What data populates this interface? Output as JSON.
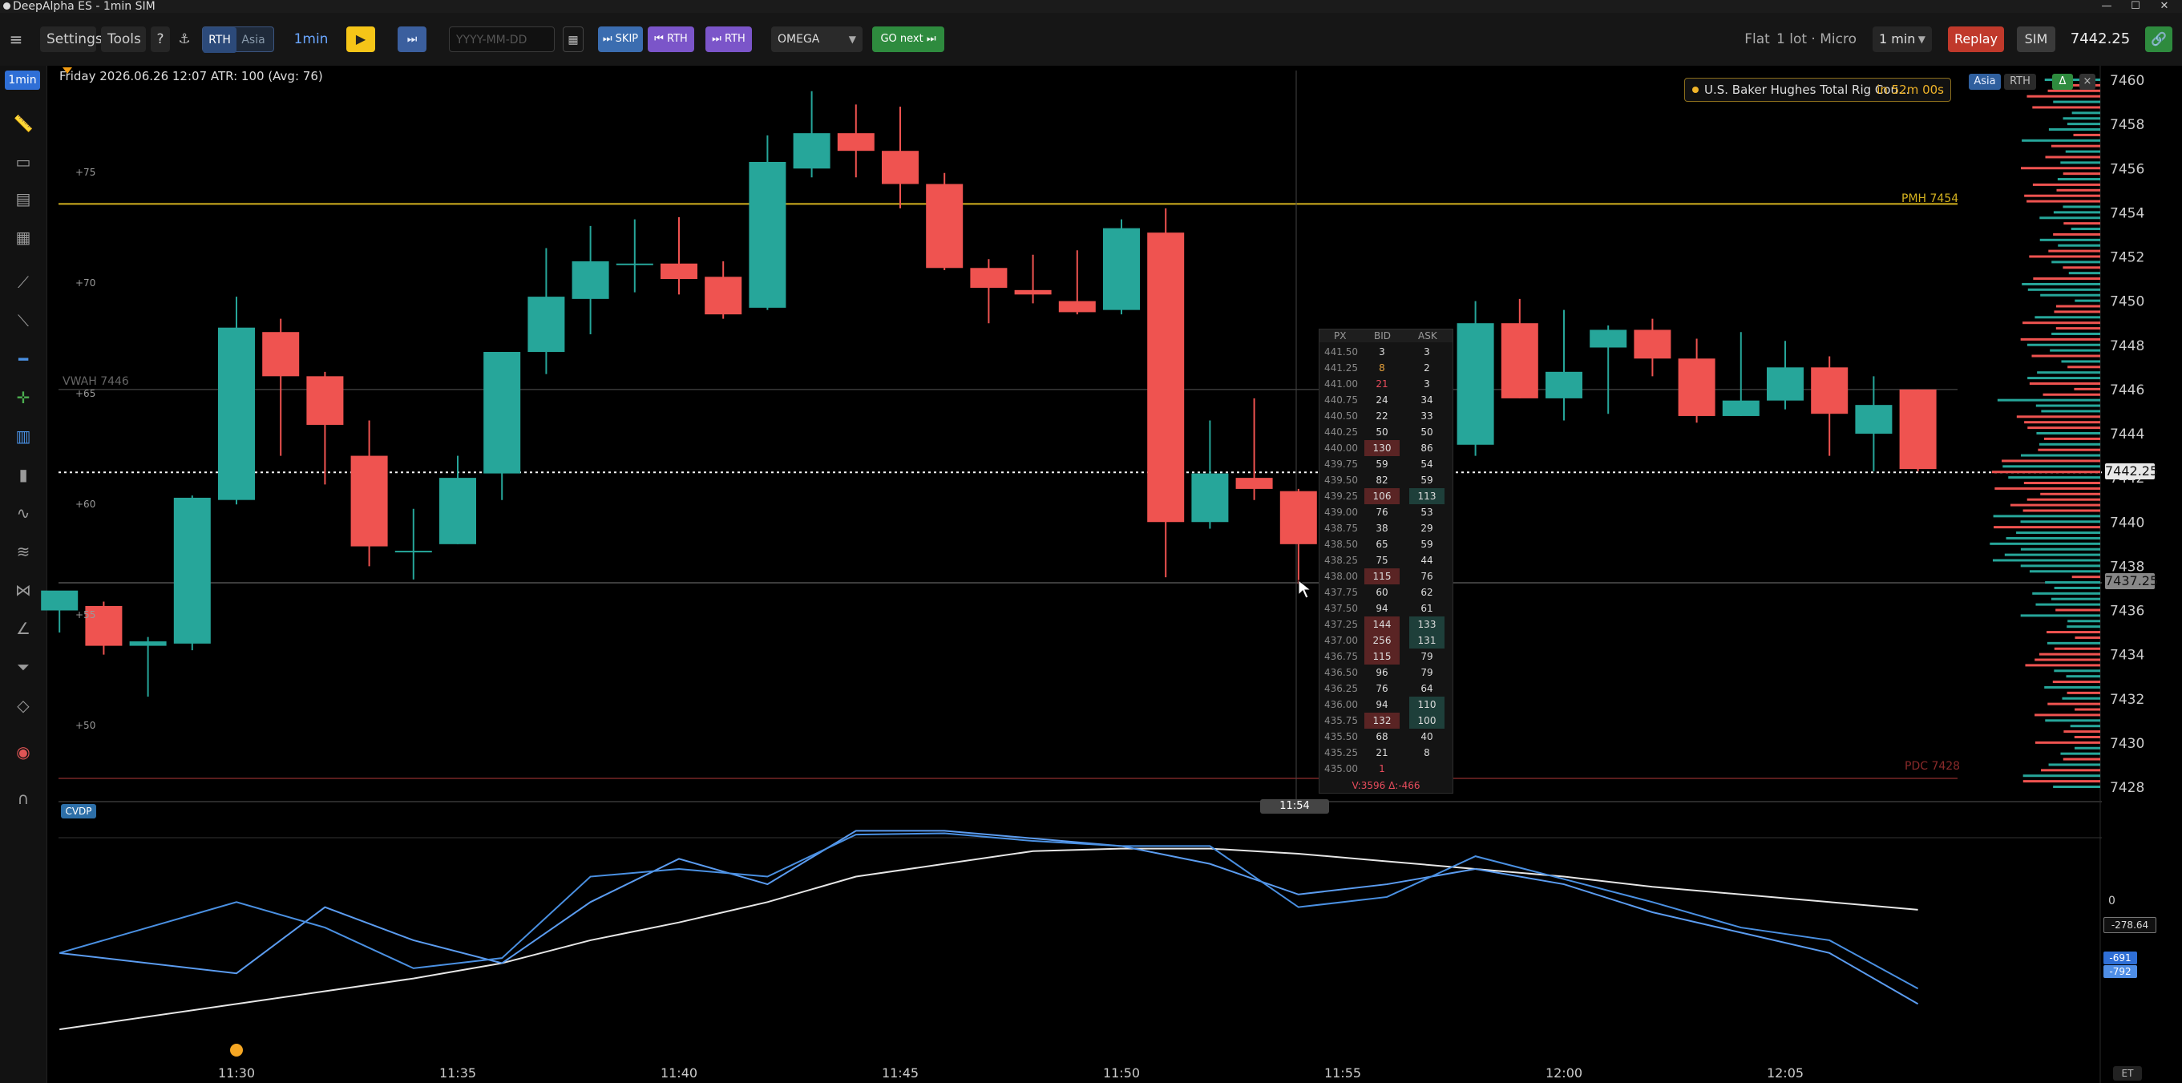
{
  "window": {
    "title": "DeepAlpha ES - 1min SIM"
  },
  "toolbar": {
    "settings": "Settings",
    "tools": "Tools",
    "help": "?",
    "session_rth": "RTH",
    "session_asia": "Asia",
    "timeframe": "1min",
    "date_placeholder": "YYYY-MM-DD",
    "skip": "⏭ SKIP",
    "prev_rth": "⏮ RTH",
    "next_rth": "⏭ RTH",
    "model": "OMEGA",
    "go_next": "GO next ⏭",
    "position": "Flat",
    "lot": "1 lot · Micro",
    "interval_select": "1 min",
    "replay": "Replay",
    "sim": "SIM",
    "last_price": "7442.25"
  },
  "left_toolbar": {
    "timeframe_badge": "1min"
  },
  "chart_header": {
    "info": "Friday 2026.06.26 12:07   ATR: 100 (Avg: 76)"
  },
  "event_banner": {
    "name": "U.S. Baker Hughes Total Rig Cou...",
    "countdown": "in 52m 00s"
  },
  "profile_tabs": {
    "asia": "Asia",
    "rth": "RTH",
    "delta": "Δ",
    "close": "×"
  },
  "level_labels": {
    "pmh": "PMH 7454",
    "vwah": "VWAH 7446",
    "pdc": "PDC 7428"
  },
  "crosshair": {
    "time_label": "11:54",
    "price_label": "7437.25"
  },
  "cvd": {
    "title": "CVDP",
    "zero_label": "0",
    "value1": "-278.64",
    "value2": "-691",
    "value3": "-792"
  },
  "timezone": "ET",
  "offset_labels": [
    "+75",
    "+70",
    "+65",
    "+60",
    "+55",
    "+50"
  ],
  "ladder": {
    "headers": [
      "PX",
      "BID",
      "ASK"
    ],
    "rows": [
      {
        "px": "441.50",
        "bid": "3",
        "ask": "3"
      },
      {
        "px": "441.25",
        "bid": "8",
        "ask": "2"
      },
      {
        "px": "441.00",
        "bid": "21",
        "ask": "3"
      },
      {
        "px": "440.75",
        "bid": "24",
        "ask": "34"
      },
      {
        "px": "440.50",
        "bid": "22",
        "ask": "33"
      },
      {
        "px": "440.25",
        "bid": "50",
        "ask": "50"
      },
      {
        "px": "440.00",
        "bid": "130",
        "ask": "86"
      },
      {
        "px": "439.75",
        "bid": "59",
        "ask": "54"
      },
      {
        "px": "439.50",
        "bid": "82",
        "ask": "59"
      },
      {
        "px": "439.25",
        "bid": "106",
        "ask": "113"
      },
      {
        "px": "439.00",
        "bid": "76",
        "ask": "53"
      },
      {
        "px": "438.75",
        "bid": "38",
        "ask": "29"
      },
      {
        "px": "438.50",
        "bid": "65",
        "ask": "59"
      },
      {
        "px": "438.25",
        "bid": "75",
        "ask": "44"
      },
      {
        "px": "438.00",
        "bid": "115",
        "ask": "76"
      },
      {
        "px": "437.75",
        "bid": "60",
        "ask": "62"
      },
      {
        "px": "437.50",
        "bid": "94",
        "ask": "61"
      },
      {
        "px": "437.25",
        "bid": "144",
        "ask": "133"
      },
      {
        "px": "437.00",
        "bid": "256",
        "ask": "131"
      },
      {
        "px": "436.75",
        "bid": "115",
        "ask": "79"
      },
      {
        "px": "436.50",
        "bid": "96",
        "ask": "79"
      },
      {
        "px": "436.25",
        "bid": "76",
        "ask": "64"
      },
      {
        "px": "436.00",
        "bid": "94",
        "ask": "110"
      },
      {
        "px": "435.75",
        "bid": "132",
        "ask": "100"
      },
      {
        "px": "435.50",
        "bid": "68",
        "ask": "40"
      },
      {
        "px": "435.25",
        "bid": "21",
        "ask": "8"
      },
      {
        "px": "435.00",
        "bid": "1",
        "ask": ""
      }
    ],
    "summary": "V:3596  Δ:-466"
  },
  "chart_data": {
    "type": "candlestick",
    "y_ticks": [
      "7460",
      "7458",
      "7456",
      "7454",
      "7452",
      "7450",
      "7448",
      "7446",
      "7444",
      "7442",
      "7440",
      "7438",
      "7436",
      "7434",
      "7432",
      "7430",
      "7428"
    ],
    "x_ticks": [
      "11:30",
      "11:35",
      "11:40",
      "11:45",
      "11:50",
      "11:55",
      "12:00",
      "12:05"
    ],
    "candles": [
      {
        "t": "11:26",
        "o": 7436.0,
        "h": 7436.8,
        "l": 7435.0,
        "c": 7436.9
      },
      {
        "t": "11:27",
        "o": 7436.2,
        "h": 7436.4,
        "l": 7434.0,
        "c": 7434.4
      },
      {
        "t": "11:28",
        "o": 7434.4,
        "h": 7434.8,
        "l": 7432.1,
        "c": 7434.6
      },
      {
        "t": "11:29",
        "o": 7434.5,
        "h": 7441.2,
        "l": 7434.2,
        "c": 7441.1
      },
      {
        "t": "11:30",
        "o": 7441.0,
        "h": 7450.2,
        "l": 7440.8,
        "c": 7448.8
      },
      {
        "t": "11:31",
        "o": 7448.6,
        "h": 7449.2,
        "l": 7443.0,
        "c": 7446.6
      },
      {
        "t": "11:32",
        "o": 7446.6,
        "h": 7446.8,
        "l": 7441.7,
        "c": 7444.4
      },
      {
        "t": "11:33",
        "o": 7443.0,
        "h": 7444.6,
        "l": 7438.0,
        "c": 7438.9
      },
      {
        "t": "11:34",
        "o": 7438.7,
        "h": 7440.6,
        "l": 7437.4,
        "c": 7438.7
      },
      {
        "t": "11:35",
        "o": 7439.0,
        "h": 7443.0,
        "l": 7439.0,
        "c": 7442.0
      },
      {
        "t": "11:36",
        "o": 7442.2,
        "h": 7447.7,
        "l": 7441.0,
        "c": 7447.7
      },
      {
        "t": "11:37",
        "o": 7447.7,
        "h": 7452.4,
        "l": 7446.7,
        "c": 7450.2
      },
      {
        "t": "11:38",
        "o": 7450.1,
        "h": 7453.4,
        "l": 7448.5,
        "c": 7451.8
      },
      {
        "t": "11:39",
        "o": 7451.7,
        "h": 7453.7,
        "l": 7450.4,
        "c": 7451.7
      },
      {
        "t": "11:40",
        "o": 7451.7,
        "h": 7453.8,
        "l": 7450.3,
        "c": 7451.0
      },
      {
        "t": "11:41",
        "o": 7451.1,
        "h": 7451.8,
        "l": 7449.2,
        "c": 7449.4
      },
      {
        "t": "11:42",
        "o": 7449.7,
        "h": 7457.5,
        "l": 7449.6,
        "c": 7456.3
      },
      {
        "t": "11:43",
        "o": 7456.0,
        "h": 7459.5,
        "l": 7455.6,
        "c": 7457.6
      },
      {
        "t": "11:44",
        "o": 7457.6,
        "h": 7458.9,
        "l": 7455.6,
        "c": 7456.8
      },
      {
        "t": "11:45",
        "o": 7456.8,
        "h": 7458.8,
        "l": 7454.2,
        "c": 7455.3
      },
      {
        "t": "11:46",
        "o": 7455.3,
        "h": 7455.8,
        "l": 7451.4,
        "c": 7451.5
      },
      {
        "t": "11:47",
        "o": 7451.5,
        "h": 7451.9,
        "l": 7449.0,
        "c": 7450.6
      },
      {
        "t": "11:48",
        "o": 7450.5,
        "h": 7452.1,
        "l": 7449.9,
        "c": 7450.3
      },
      {
        "t": "11:49",
        "o": 7450.0,
        "h": 7452.3,
        "l": 7449.4,
        "c": 7449.5
      },
      {
        "t": "11:50",
        "o": 7449.6,
        "h": 7453.7,
        "l": 7449.4,
        "c": 7453.3
      },
      {
        "t": "11:51",
        "o": 7453.1,
        "h": 7454.2,
        "l": 7437.5,
        "c": 7440.0
      },
      {
        "t": "11:52",
        "o": 7440.0,
        "h": 7444.6,
        "l": 7439.7,
        "c": 7442.2
      },
      {
        "t": "11:53",
        "o": 7442.0,
        "h": 7445.6,
        "l": 7441.0,
        "c": 7441.5
      },
      {
        "t": "11:54",
        "o": 7441.4,
        "h": 7441.5,
        "l": 7437.2,
        "c": 7439.0
      },
      {
        "t": "11:55",
        "o": 7439.0,
        "h": 7441.2,
        "l": 7439.0,
        "c": 7440.0
      },
      {
        "t": "11:56",
        "o": 7440.0,
        "h": 7443.0,
        "l": 7439.0,
        "c": 7442.5
      },
      {
        "t": "11:57",
        "o": 7442.5,
        "h": 7444.5,
        "l": 7441.5,
        "c": 7443.5
      },
      {
        "t": "11:58",
        "o": 7443.5,
        "h": 7450.0,
        "l": 7443.0,
        "c": 7449.0
      },
      {
        "t": "11:59",
        "o": 7449.0,
        "h": 7450.1,
        "l": 7445.6,
        "c": 7445.6
      },
      {
        "t": "12:00",
        "o": 7445.6,
        "h": 7449.6,
        "l": 7444.6,
        "c": 7446.8
      },
      {
        "t": "12:01",
        "o": 7447.9,
        "h": 7448.9,
        "l": 7444.9,
        "c": 7448.7
      },
      {
        "t": "12:02",
        "o": 7448.7,
        "h": 7449.2,
        "l": 7446.6,
        "c": 7447.4
      },
      {
        "t": "12:03",
        "o": 7447.4,
        "h": 7448.3,
        "l": 7444.5,
        "c": 7444.8
      },
      {
        "t": "12:04",
        "o": 7444.8,
        "h": 7448.6,
        "l": 7444.8,
        "c": 7445.5
      },
      {
        "t": "12:05",
        "o": 7445.5,
        "h": 7448.2,
        "l": 7445.1,
        "c": 7447.0
      },
      {
        "t": "12:06",
        "o": 7447.0,
        "h": 7447.5,
        "l": 7443.0,
        "c": 7444.9
      },
      {
        "t": "12:07",
        "o": 7444.0,
        "h": 7446.6,
        "l": 7442.3,
        "c": 7445.3
      },
      {
        "t": "12:08",
        "o": 7446.0,
        "h": 7446.0,
        "l": 7442.3,
        "c": 7442.4
      }
    ],
    "levels": {
      "pmh": 7454.4,
      "vwah": 7446.0,
      "last": 7442.25,
      "crosshair": 7437.25,
      "pdc": 7428.4
    },
    "colors": {
      "up": "#26a69a",
      "down": "#ef5350",
      "pmh": "#d4b21f",
      "pdc": "#b33a3a",
      "cvd1": "#4a90e2",
      "cvd2": "#5b9cf0",
      "cvd_avg": "#e6e6e6"
    },
    "volume_profile_ticks": [
      7460,
      7428
    ],
    "cvd_series": {
      "x": [
        "11:26",
        "11:30",
        "11:32",
        "11:34",
        "11:36",
        "11:38",
        "11:40",
        "11:42",
        "11:44",
        "11:46",
        "11:48",
        "11:50",
        "11:52",
        "11:54",
        "11:56",
        "11:58",
        "12:00",
        "12:02",
        "12:04",
        "12:06",
        "12:08"
      ],
      "line1": [
        -500,
        -300,
        -400,
        -560,
        -520,
        -200,
        -170,
        -200,
        -35,
        -30,
        -60,
        -80,
        -80,
        -320,
        -280,
        -120,
        -210,
        -300,
        -400,
        -450,
        -640
      ],
      "line2": [
        -500,
        -580,
        -320,
        -450,
        -540,
        -300,
        -130,
        -230,
        -20,
        -20,
        -50,
        -80,
        -150,
        -270,
        -230,
        -170,
        -230,
        -340,
        -420,
        -500,
        -700
      ],
      "avg": [
        -800,
        -700,
        -650,
        -600,
        -540,
        -450,
        -380,
        -300,
        -200,
        -150,
        -100,
        -90,
        -90,
        -110,
        -140,
        -170,
        -200,
        -240,
        -270,
        -300,
        -330
      ]
    }
  }
}
